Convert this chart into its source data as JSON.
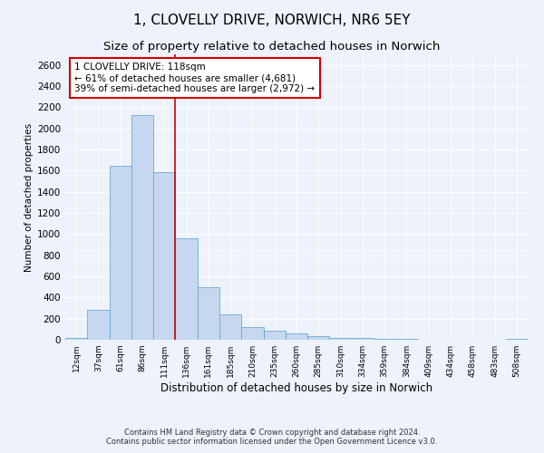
{
  "title1": "1, CLOVELLY DRIVE, NORWICH, NR6 5EY",
  "title2": "Size of property relative to detached houses in Norwich",
  "xlabel": "Distribution of detached houses by size in Norwich",
  "ylabel": "Number of detached properties",
  "categories": [
    "12sqm",
    "37sqm",
    "61sqm",
    "86sqm",
    "111sqm",
    "136sqm",
    "161sqm",
    "185sqm",
    "210sqm",
    "235sqm",
    "260sqm",
    "285sqm",
    "310sqm",
    "334sqm",
    "359sqm",
    "384sqm",
    "409sqm",
    "434sqm",
    "458sqm",
    "483sqm",
    "508sqm"
  ],
  "values": [
    18,
    280,
    1650,
    2130,
    1590,
    960,
    500,
    240,
    120,
    90,
    60,
    35,
    20,
    14,
    10,
    5,
    4,
    3,
    2,
    1,
    5
  ],
  "bar_color": "#c5d8f0",
  "bar_edge_color": "#6aaad4",
  "vline_x": 4.5,
  "vline_color": "#cc0000",
  "annotation_text": "1 CLOVELLY DRIVE: 118sqm\n← 61% of detached houses are smaller (4,681)\n39% of semi-detached houses are larger (2,972) →",
  "annotation_box_color": "#ffffff",
  "annotation_box_edge_color": "#cc0000",
  "ylim": [
    0,
    2700
  ],
  "yticks": [
    0,
    200,
    400,
    600,
    800,
    1000,
    1200,
    1400,
    1600,
    1800,
    2000,
    2200,
    2400,
    2600
  ],
  "footnote1": "Contains HM Land Registry data © Crown copyright and database right 2024.",
  "footnote2": "Contains public sector information licensed under the Open Government Licence v3.0.",
  "bg_color": "#edf2fb",
  "plot_bg_color": "#edf2fb",
  "title1_fontsize": 11,
  "title2_fontsize": 9.5
}
